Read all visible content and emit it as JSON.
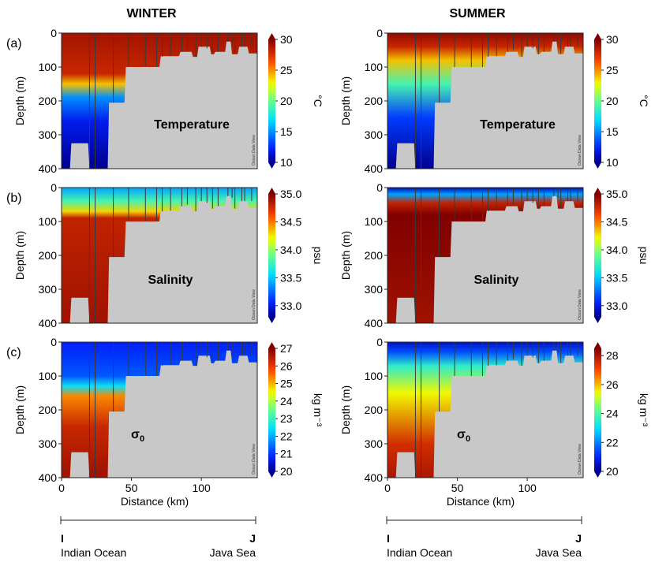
{
  "columns": [
    "WINTER",
    "SUMMER"
  ],
  "row_labels": [
    "(a)",
    "(b)",
    "(c)"
  ],
  "field_labels": [
    "Temperature",
    "Salinity",
    "σ0"
  ],
  "colorbar_units": [
    "°C",
    "psu",
    "kg m⁻³"
  ],
  "watermark": "Ocean Data View",
  "axes": {
    "ylabel": "Depth (m)",
    "xlabel": "Distance (km)",
    "yticks": [
      "0",
      "100",
      "200",
      "300",
      "400"
    ],
    "xticks": [
      "0",
      "50",
      "100"
    ]
  },
  "transect": {
    "start_letter": "I",
    "end_letter": "J",
    "start_name": "Indian Ocean",
    "end_name": "Java Sea"
  },
  "colors": {
    "land": "#c8c8c8",
    "station_line": "#3a3a3a"
  },
  "chart_data": [
    {
      "type": "heatmap",
      "column": "WINTER",
      "variable": "Temperature",
      "unit": "°C",
      "xlim": [
        0,
        140
      ],
      "ylim": [
        400,
        0
      ],
      "colorbar": {
        "range": [
          10,
          30
        ],
        "ticks": [
          "30",
          "25",
          "20",
          "15",
          "10"
        ]
      },
      "profile": [
        {
          "depth": 0,
          "value": 29
        },
        {
          "depth": 120,
          "value": 28
        },
        {
          "depth": 150,
          "value": 24
        },
        {
          "depth": 190,
          "value": 15
        },
        {
          "depth": 260,
          "value": 12
        },
        {
          "depth": 400,
          "value": 10
        }
      ]
    },
    {
      "type": "heatmap",
      "column": "SUMMER",
      "variable": "Temperature",
      "unit": "°C",
      "xlim": [
        0,
        140
      ],
      "ylim": [
        400,
        0
      ],
      "colorbar": {
        "range": [
          10,
          30
        ],
        "ticks": [
          "30",
          "25",
          "20",
          "15",
          "10"
        ]
      },
      "profile": [
        {
          "depth": 0,
          "value": 29.5
        },
        {
          "depth": 40,
          "value": 28
        },
        {
          "depth": 80,
          "value": 24
        },
        {
          "depth": 150,
          "value": 19
        },
        {
          "depth": 250,
          "value": 13
        },
        {
          "depth": 400,
          "value": 10
        }
      ]
    },
    {
      "type": "heatmap",
      "column": "WINTER",
      "variable": "Salinity",
      "unit": "psu",
      "xlim": [
        0,
        140
      ],
      "ylim": [
        400,
        0
      ],
      "colorbar": {
        "range": [
          32.8,
          35.0
        ],
        "ticks": [
          "35.0",
          "34.5",
          "34.0",
          "33.5",
          "33.0"
        ]
      },
      "profile": [
        {
          "depth": 0,
          "value": 33.4
        },
        {
          "depth": 40,
          "value": 33.8
        },
        {
          "depth": 70,
          "value": 34.3
        },
        {
          "depth": 90,
          "value": 34.8
        },
        {
          "depth": 400,
          "value": 34.9
        }
      ]
    },
    {
      "type": "heatmap",
      "column": "SUMMER",
      "variable": "Salinity",
      "unit": "psu",
      "xlim": [
        0,
        140
      ],
      "ylim": [
        400,
        0
      ],
      "colorbar": {
        "range": [
          32.8,
          35.0
        ],
        "ticks": [
          "35.0",
          "34.5",
          "34.0",
          "33.5",
          "33.0"
        ]
      },
      "profile": [
        {
          "depth": 0,
          "value": 32.9
        },
        {
          "depth": 20,
          "value": 33.4
        },
        {
          "depth": 45,
          "value": 34.8
        },
        {
          "depth": 80,
          "value": 35.0
        },
        {
          "depth": 400,
          "value": 34.9
        }
      ]
    },
    {
      "type": "heatmap",
      "column": "WINTER",
      "variable": "σ0",
      "unit": "kg m⁻³",
      "xlim": [
        0,
        140
      ],
      "ylim": [
        400,
        0
      ],
      "colorbar": {
        "range": [
          20,
          27
        ],
        "ticks": [
          "27",
          "26",
          "25",
          "24",
          "23",
          "22",
          "21",
          "20"
        ]
      },
      "profile": [
        {
          "depth": 0,
          "value": 20.8
        },
        {
          "depth": 100,
          "value": 21.3
        },
        {
          "depth": 130,
          "value": 22.5
        },
        {
          "depth": 160,
          "value": 25.3
        },
        {
          "depth": 250,
          "value": 26.3
        },
        {
          "depth": 400,
          "value": 26.7
        }
      ]
    },
    {
      "type": "heatmap",
      "column": "SUMMER",
      "variable": "σ0",
      "unit": "kg m⁻³",
      "xlim": [
        0,
        140
      ],
      "ylim": [
        400,
        0
      ],
      "colorbar": {
        "range": [
          20,
          28.5
        ],
        "ticks": [
          "28",
          "26",
          "24",
          "22",
          "20"
        ]
      },
      "profile": [
        {
          "depth": 0,
          "value": 20.5
        },
        {
          "depth": 30,
          "value": 21.5
        },
        {
          "depth": 70,
          "value": 23.5
        },
        {
          "depth": 150,
          "value": 25.5
        },
        {
          "depth": 300,
          "value": 27.5
        },
        {
          "depth": 400,
          "value": 28
        }
      ]
    }
  ]
}
